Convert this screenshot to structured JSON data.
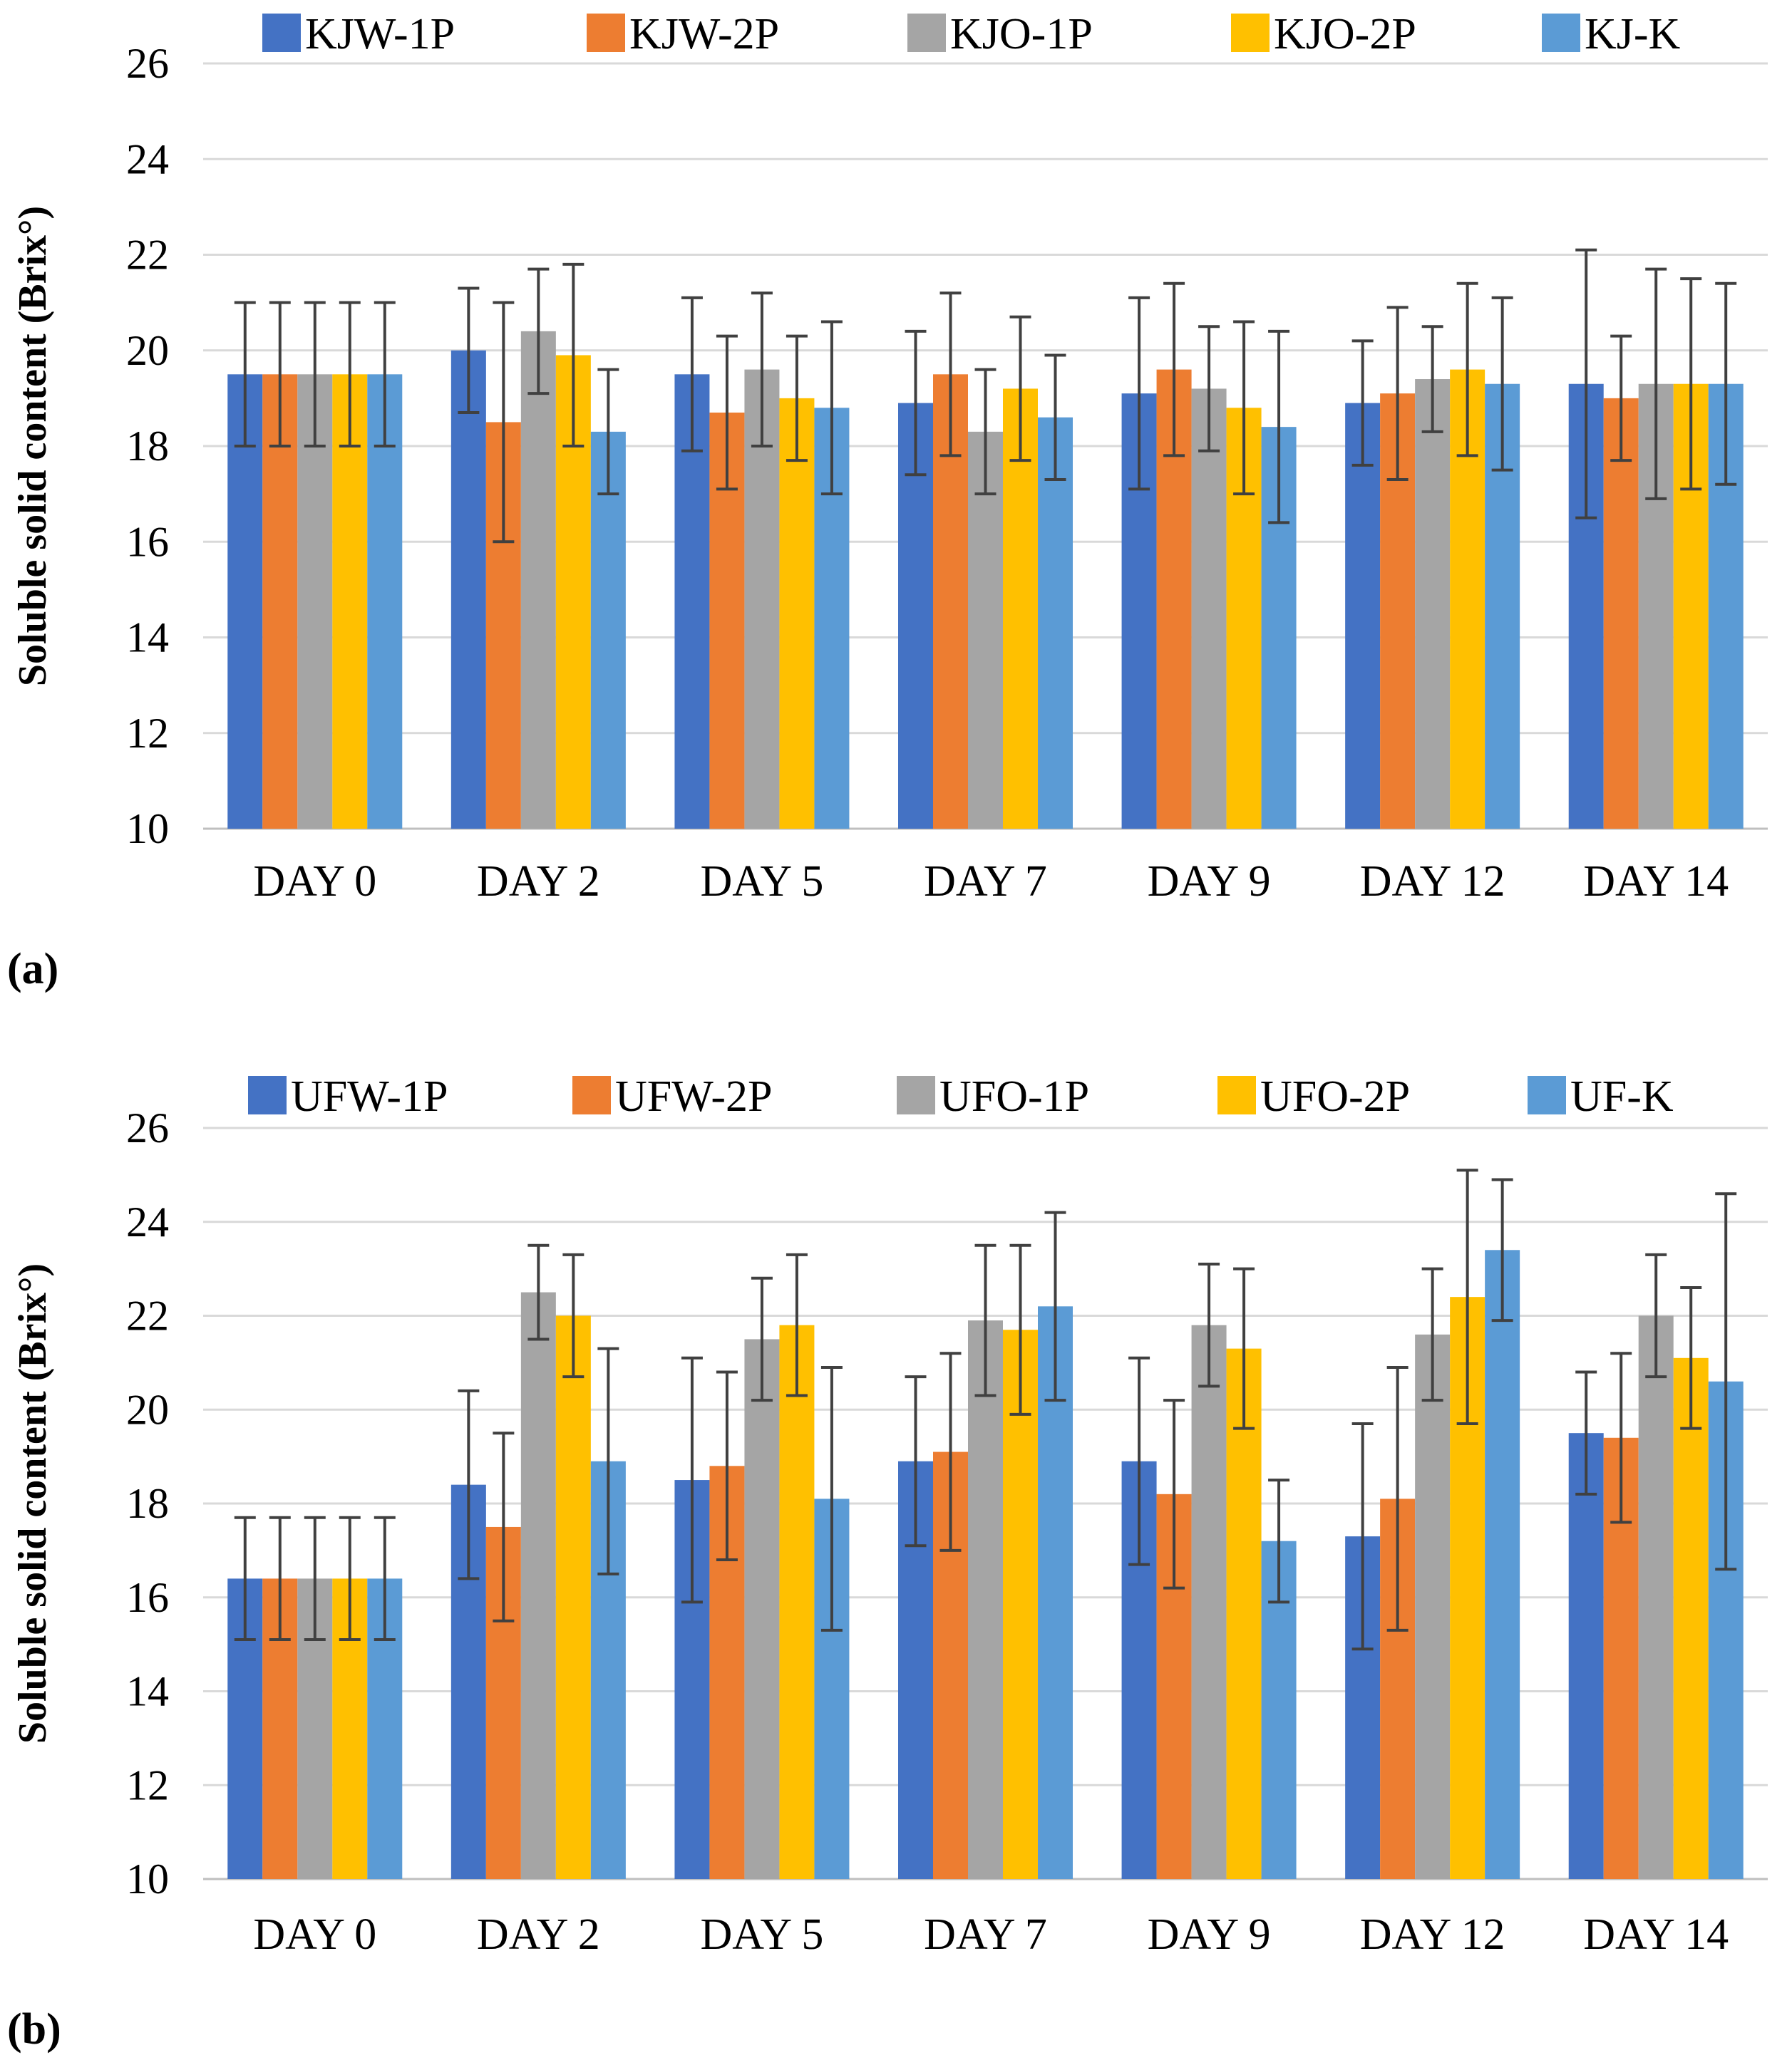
{
  "chart_data": [
    {
      "type": "bar",
      "panel_label": "(a)",
      "ylabel": "Soluble solid content (Brix°)",
      "ylim": [
        10,
        26
      ],
      "yticks": [
        10,
        12,
        14,
        16,
        18,
        20,
        22,
        24,
        26
      ],
      "grid": true,
      "legend_position": "top",
      "categories": [
        "DAY 0",
        "DAY 2",
        "DAY 5",
        "DAY 7",
        "DAY 9",
        "DAY 12",
        "DAY 14"
      ],
      "series": [
        {
          "name": "KJW-1P",
          "color": "#4472C4",
          "values": [
            19.5,
            20.0,
            19.5,
            18.9,
            19.1,
            18.9,
            19.3
          ],
          "errors": [
            1.5,
            1.3,
            1.6,
            1.5,
            2.0,
            1.3,
            2.8
          ]
        },
        {
          "name": "KJW-2P",
          "color": "#ED7D31",
          "values": [
            19.5,
            18.5,
            18.7,
            19.5,
            19.6,
            19.1,
            19.0
          ],
          "errors": [
            1.5,
            2.5,
            1.6,
            1.7,
            1.8,
            1.8,
            1.3
          ]
        },
        {
          "name": "KJO-1P",
          "color": "#A5A5A5",
          "values": [
            19.5,
            20.4,
            19.6,
            18.3,
            19.2,
            19.4,
            19.3
          ],
          "errors": [
            1.5,
            1.3,
            1.6,
            1.3,
            1.3,
            1.1,
            2.4
          ]
        },
        {
          "name": "KJO-2P",
          "color": "#FFC000",
          "values": [
            19.5,
            19.9,
            19.0,
            19.2,
            18.8,
            19.6,
            19.3
          ],
          "errors": [
            1.5,
            1.9,
            1.3,
            1.5,
            1.8,
            1.8,
            2.2
          ]
        },
        {
          "name": "KJ-K",
          "color": "#5B9BD5",
          "values": [
            19.5,
            18.3,
            18.8,
            18.6,
            18.4,
            19.3,
            19.3
          ],
          "errors": [
            1.5,
            1.3,
            1.8,
            1.3,
            2.0,
            1.8,
            2.1
          ]
        }
      ]
    },
    {
      "type": "bar",
      "panel_label": "(b)",
      "ylabel": "Soluble solid content (Brix°)",
      "ylim": [
        10,
        26
      ],
      "yticks": [
        10,
        12,
        14,
        16,
        18,
        20,
        22,
        24,
        26
      ],
      "grid": true,
      "legend_position": "top",
      "categories": [
        "DAY 0",
        "DAY 2",
        "DAY 5",
        "DAY 7",
        "DAY 9",
        "DAY 12",
        "DAY 14"
      ],
      "series": [
        {
          "name": "UFW-1P",
          "color": "#4472C4",
          "values": [
            16.4,
            18.4,
            18.5,
            18.9,
            18.9,
            17.3,
            19.5
          ],
          "errors": [
            1.3,
            2.0,
            2.6,
            1.8,
            2.2,
            2.4,
            1.3
          ]
        },
        {
          "name": "UFW-2P",
          "color": "#ED7D31",
          "values": [
            16.4,
            17.5,
            18.8,
            19.1,
            18.2,
            18.1,
            19.4
          ],
          "errors": [
            1.3,
            2.0,
            2.0,
            2.1,
            2.0,
            2.8,
            1.8
          ]
        },
        {
          "name": "UFO-1P",
          "color": "#A5A5A5",
          "values": [
            16.4,
            22.5,
            21.5,
            21.9,
            21.8,
            21.6,
            22.0
          ],
          "errors": [
            1.3,
            1.0,
            1.3,
            1.6,
            1.3,
            1.4,
            1.3
          ]
        },
        {
          "name": "UFO-2P",
          "color": "#FFC000",
          "values": [
            16.4,
            22.0,
            21.8,
            21.7,
            21.3,
            22.4,
            21.1
          ],
          "errors": [
            1.3,
            1.3,
            1.5,
            1.8,
            1.7,
            2.7,
            1.5
          ]
        },
        {
          "name": "UF-K",
          "color": "#5B9BD5",
          "values": [
            16.4,
            18.9,
            18.1,
            22.2,
            17.2,
            23.4,
            20.6
          ],
          "errors": [
            1.3,
            2.4,
            2.8,
            2.0,
            1.3,
            1.5,
            4.0
          ]
        }
      ]
    }
  ]
}
